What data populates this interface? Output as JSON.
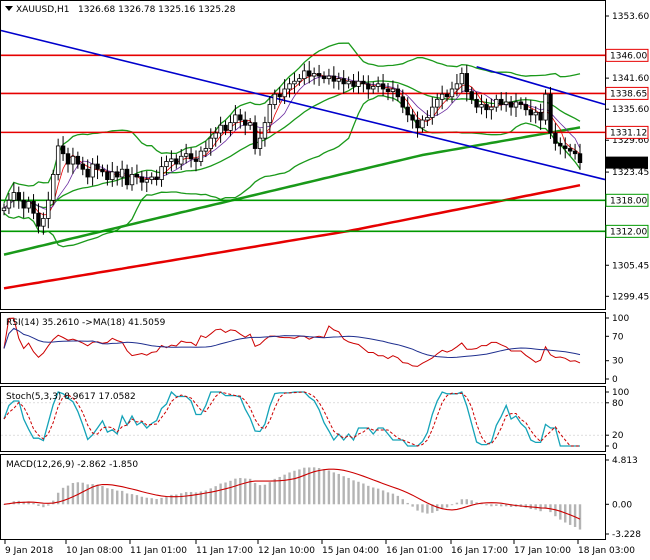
{
  "chart_data": [
    {
      "type": "candlestick",
      "panel": "price",
      "title": "XAUUSD,H1",
      "ohlc_label": "1326.68 1326.78 1325.16 1325.28",
      "ylim": [
        1297.0,
        1356.5
      ],
      "y_ticks": [
        1353.6,
        1341.6,
        1335.6,
        1329.6,
        1323.45,
        1305.45,
        1299.45
      ],
      "y_tick_labels": [
        "1353.60",
        "1341.60",
        "1335.60",
        "1329.60",
        "1323.45",
        "1305.45",
        "1299.45"
      ],
      "hidden_ticks": [
        "1347.60",
        "1317.45",
        "1311.45"
      ],
      "levels": [
        {
          "value": 1346.0,
          "label": "1346.00",
          "color": "#e60000"
        },
        {
          "value": 1338.65,
          "label": "1338.65",
          "color": "#e60000"
        },
        {
          "value": 1331.12,
          "label": "1331.12",
          "color": "#e60000"
        },
        {
          "value": 1318.0,
          "label": "1318.00",
          "color": "#009900"
        },
        {
          "value": 1312.0,
          "label": "1312.00",
          "color": "#009900"
        }
      ],
      "current_price": {
        "value": 1325.28,
        "label": "1325.28"
      },
      "closes": [
        1316.5,
        1318.0,
        1319.5,
        1318.0,
        1316.5,
        1317.8,
        1315.5,
        1313.0,
        1314.5,
        1318.0,
        1323.0,
        1328.5,
        1327.0,
        1325.0,
        1326.5,
        1325.0,
        1324.0,
        1322.5,
        1325.0,
        1324.0,
        1323.5,
        1322.0,
        1323.5,
        1322.5,
        1324.0,
        1321.0,
        1323.0,
        1322.5,
        1321.5,
        1322.0,
        1322.5,
        1322.0,
        1324.5,
        1325.5,
        1326.0,
        1325.0,
        1326.5,
        1327.0,
        1326.0,
        1325.5,
        1327.5,
        1328.0,
        1330.0,
        1331.0,
        1332.5,
        1331.5,
        1333.0,
        1334.5,
        1333.5,
        1332.5,
        1333.0,
        1328.0,
        1330.0,
        1333.0,
        1336.5,
        1338.5,
        1338.0,
        1339.5,
        1340.5,
        1341.0,
        1341.5,
        1343.0,
        1342.0,
        1342.5,
        1342.0,
        1341.5,
        1342.0,
        1341.0,
        1341.5,
        1340.5,
        1341.0,
        1340.0,
        1341.0,
        1340.5,
        1339.5,
        1340.0,
        1340.5,
        1339.5,
        1339.0,
        1339.5,
        1338.0,
        1336.0,
        1334.5,
        1333.5,
        1332.0,
        1333.5,
        1334.0,
        1336.0,
        1337.5,
        1338.5,
        1338.0,
        1339.5,
        1340.5,
        1342.5,
        1339.0,
        1337.5,
        1336.0,
        1336.5,
        1335.5,
        1336.0,
        1337.5,
        1336.5,
        1337.0,
        1336.0,
        1337.0,
        1336.5,
        1335.5,
        1334.5,
        1335.0,
        1333.5,
        1338.5,
        1331.0,
        1329.0,
        1328.5,
        1328.0,
        1327.5,
        1327.0,
        1325.28
      ],
      "indicators": [
        "Bollinger Bands (green)",
        "Moving averages (red, purple)",
        "200 MA (green)",
        "MA (red)",
        "Trend channel (blue)"
      ]
    },
    {
      "type": "line",
      "panel": "rsi",
      "label": "RSI(14) 35.2610 ->MA(18) 41.5059",
      "ylim": [
        0,
        100
      ],
      "y_tick_labels": [
        "100",
        "70",
        "30",
        "0"
      ],
      "y_ticks": [
        100,
        70,
        30,
        0
      ]
    },
    {
      "type": "line",
      "panel": "stochastic",
      "label": "Stoch(5,3,3) 8.9617 17.0582",
      "ylim": [
        0,
        100
      ],
      "y_tick_labels": [
        "100",
        "80",
        "20",
        "0"
      ],
      "y_ticks": [
        100,
        80,
        20,
        0
      ]
    },
    {
      "type": "histogram",
      "panel": "macd",
      "label": "MACD(12,26,9) -2.862 -1.850",
      "ylim": [
        -3.228,
        4.813
      ],
      "y_tick_labels": [
        "4.813",
        "0.00",
        "-3.228"
      ],
      "y_ticks": [
        4.813,
        0.0,
        -3.228
      ]
    }
  ],
  "x_axis": {
    "labels": [
      "9 Jan 2018",
      "10 Jan 08:00",
      "11 Jan 01:00",
      "11 Jan 17:00",
      "12 Jan 10:00",
      "15 Jan 04:00",
      "16 Jan 01:00",
      "16 Jan 17:00",
      "17 Jan 10:00",
      "18 Jan 03:00"
    ]
  },
  "colors": {
    "background": "#ffffff",
    "frame": "#000000",
    "bollinger": "#1a991a",
    "ma200": "#199919",
    "ma_red": "#e60000",
    "trend": "#0000cc",
    "candle": "#000000",
    "rsi_line": "#cc0000",
    "rsi_ma": "#1f2f8f",
    "stoch_main": "#14a3b8",
    "stoch_signal": "#cc0000",
    "macd_hist": "#b4b4b4",
    "macd_signal": "#cc0000"
  }
}
